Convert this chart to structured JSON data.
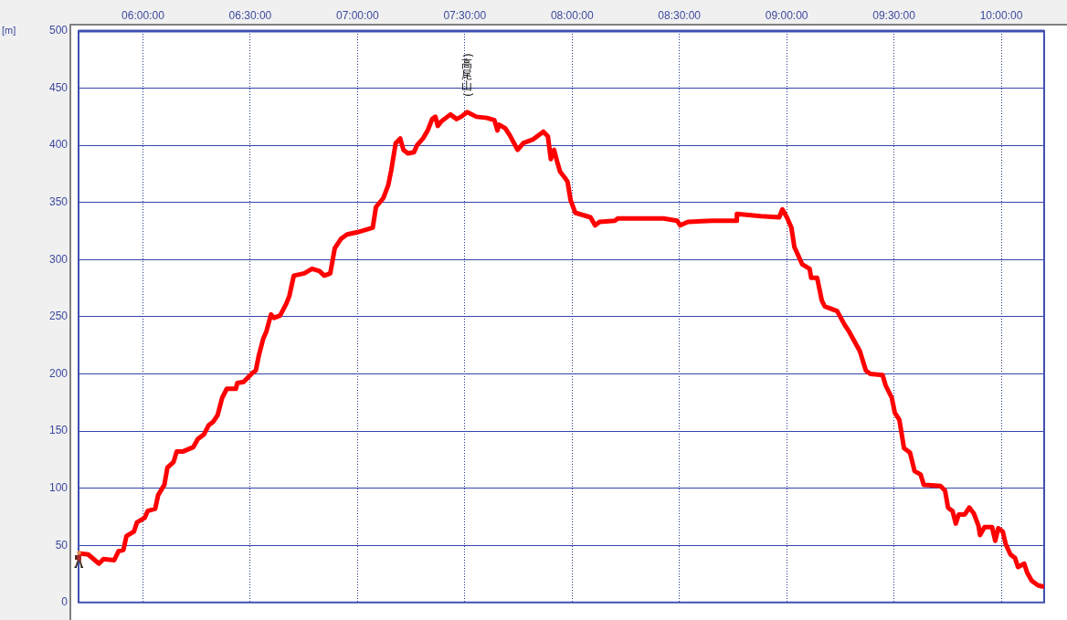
{
  "chart_data": {
    "type": "line",
    "ylabel": "[m]",
    "annotations": [
      {
        "text": "(高尾山)",
        "x": 7.511,
        "y": 429
      }
    ],
    "x": [
      5.7,
      5.745,
      5.795,
      5.816,
      5.866,
      5.887,
      5.909,
      5.923,
      5.958,
      5.972,
      6.008,
      6.022,
      6.057,
      6.071,
      6.1,
      6.114,
      6.143,
      6.157,
      6.185,
      6.235,
      6.256,
      6.284,
      6.306,
      6.327,
      6.348,
      6.369,
      6.391,
      6.433,
      6.44,
      6.469,
      6.49,
      6.511,
      6.526,
      6.54,
      6.561,
      6.575,
      6.597,
      6.611,
      6.639,
      6.667,
      6.682,
      6.703,
      6.752,
      6.788,
      6.823,
      6.845,
      6.873,
      6.894,
      6.922,
      6.951,
      7.0,
      7.071,
      7.086,
      7.121,
      7.143,
      7.157,
      7.178,
      7.199,
      7.214,
      7.235,
      7.263,
      7.277,
      7.305,
      7.327,
      7.348,
      7.363,
      7.374,
      7.391,
      7.433,
      7.462,
      7.483,
      7.511,
      7.554,
      7.603,
      7.638,
      7.652,
      7.66,
      7.688,
      7.709,
      7.746,
      7.773,
      7.816,
      7.866,
      7.887,
      7.901,
      7.916,
      7.93,
      7.944,
      7.965,
      7.979,
      7.993,
      8.015,
      8.086,
      8.107,
      8.128,
      8.199,
      8.213,
      8.369,
      8.426,
      8.49,
      8.504,
      8.54,
      8.653,
      8.767,
      8.768,
      8.88,
      8.965,
      8.98,
      9.001,
      9.022,
      9.036,
      9.072,
      9.107,
      9.114,
      9.142,
      9.164,
      9.178,
      9.235,
      9.27,
      9.291,
      9.341,
      9.369,
      9.39,
      9.447,
      9.461,
      9.49,
      9.504,
      9.525,
      9.547,
      9.575,
      9.596,
      9.624,
      9.639,
      9.717,
      9.738,
      9.752,
      9.773,
      9.788,
      9.802,
      9.83,
      9.851,
      9.872,
      9.894,
      9.901,
      9.922,
      9.957,
      9.972,
      9.986,
      10.007,
      10.021,
      10.043,
      10.064,
      10.078,
      10.107,
      10.121,
      10.142,
      10.171,
      10.192
    ],
    "values": [
      43,
      42,
      34,
      38,
      37,
      45,
      46,
      58,
      62,
      70,
      74,
      80,
      82,
      94,
      103,
      118,
      123,
      132,
      132,
      136,
      143,
      147,
      155,
      158,
      164,
      179,
      187,
      187,
      192,
      193,
      197,
      201,
      203,
      216,
      231,
      237,
      252,
      249,
      251,
      261,
      268,
      286,
      288,
      292,
      290,
      286,
      288,
      310,
      318,
      322,
      324,
      328,
      346,
      354,
      365,
      378,
      402,
      406,
      396,
      393,
      394,
      400,
      406,
      413,
      423,
      425,
      417,
      421,
      427,
      423,
      425,
      429,
      425,
      424,
      422,
      413,
      418,
      415,
      409,
      396,
      402,
      405,
      412,
      408,
      388,
      396,
      386,
      377,
      372,
      368,
      352,
      341,
      337,
      330,
      333,
      334,
      336,
      336,
      336,
      334,
      330,
      333,
      334,
      334,
      340,
      338,
      337,
      344,
      337,
      328,
      311,
      296,
      292,
      284,
      284,
      264,
      259,
      255,
      243,
      237,
      220,
      203,
      200,
      199,
      190,
      179,
      166,
      160,
      135,
      131,
      115,
      112,
      103,
      102,
      98,
      83,
      80,
      69,
      77,
      77,
      83,
      78,
      67,
      59,
      66,
      66,
      54,
      65,
      62,
      51,
      42,
      39,
      31,
      34,
      26,
      19,
      15,
      14
    ],
    "color": "#ff0000",
    "xlim": [
      5.7,
      10.2
    ],
    "xticks": [
      {
        "value": 6,
        "label": "06:00:00"
      },
      {
        "value": 6.5,
        "label": "06:30:00"
      },
      {
        "value": 7,
        "label": "07:00:00"
      },
      {
        "value": 7.5,
        "label": "07:30:00"
      },
      {
        "value": 8,
        "label": "08:00:00"
      },
      {
        "value": 8.5,
        "label": "08:30:00"
      },
      {
        "value": 9,
        "label": "09:00:00"
      },
      {
        "value": 9.5,
        "label": "09:30:00"
      },
      {
        "value": 10,
        "label": "10:00:00"
      }
    ],
    "ylim": [
      0,
      500
    ],
    "yticks": [
      0,
      50,
      100,
      150,
      200,
      250,
      300,
      350,
      400,
      450,
      500
    ],
    "grid": true
  }
}
